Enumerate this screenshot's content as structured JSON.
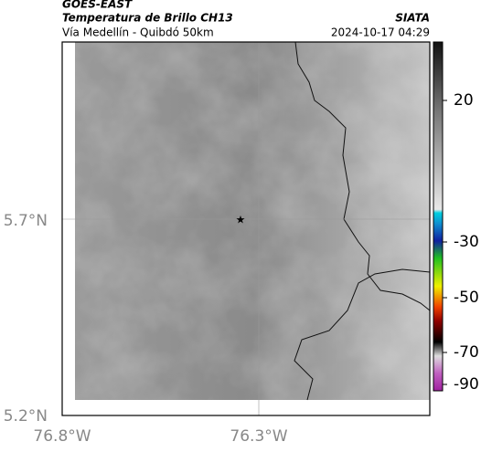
{
  "header": {
    "source": "GOES-EAST",
    "title": "Temperatura de Brillo CH13",
    "subtitle": "Vía Medellín - Quibdó 50km",
    "org": "SIATA",
    "datetime": "2024-10-17 04:29"
  },
  "axes": {
    "lat_labels": [
      "5.7°N",
      "5.2°N"
    ],
    "lon_labels": [
      "76.8°W",
      "76.3°W"
    ]
  },
  "colorbar": {
    "ticks": [
      20,
      -30,
      -50,
      -70,
      -90
    ]
  }
}
